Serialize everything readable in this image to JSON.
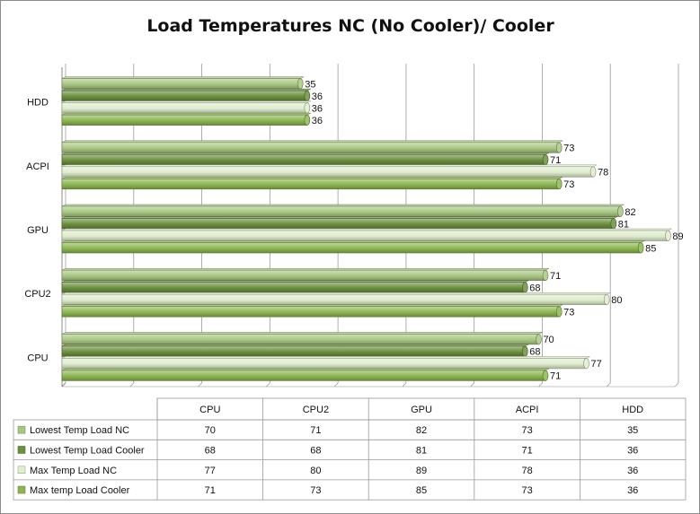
{
  "chart_data": {
    "type": "bar",
    "orientation": "horizontal",
    "title": "Load Temperatures NC (No Cooler)/ Cooler",
    "categories": [
      "CPU",
      "CPU2",
      "GPU",
      "ACPI",
      "HDD"
    ],
    "xlim": [
      0,
      90
    ],
    "grid": true,
    "legend": "data table below chart",
    "series": [
      {
        "name": "Lowest Temp  Load NC",
        "color": "#a9c784",
        "values": [
          70,
          71,
          82,
          73,
          35
        ]
      },
      {
        "name": "Lowest Temp  Load Cooler",
        "color": "#6b8f3e",
        "values": [
          68,
          68,
          81,
          71,
          36
        ]
      },
      {
        "name": "Max Temp Load NC",
        "color": "#dfeccd",
        "values": [
          77,
          80,
          89,
          78,
          36
        ]
      },
      {
        "name": "Max temp Load Cooler",
        "color": "#8db653",
        "values": [
          71,
          73,
          85,
          73,
          36
        ]
      }
    ]
  }
}
